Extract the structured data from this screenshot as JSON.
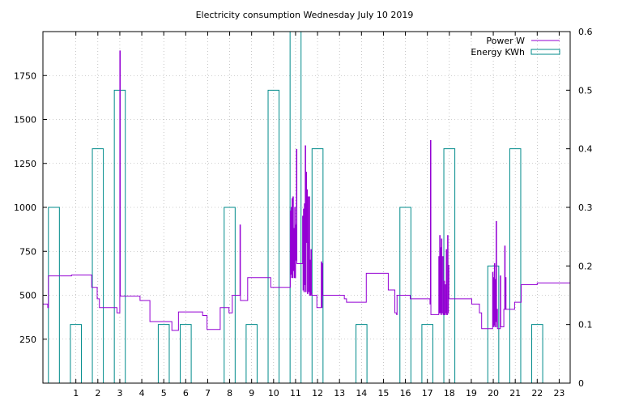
{
  "chart_data": {
    "type": "line",
    "title": "Electricity consumption Wednesday July 10 2019",
    "xlabel": "",
    "ylabel": "",
    "y2label": "",
    "grid": true,
    "legend_position": "top-right",
    "x_range": [
      -0.5,
      23.5
    ],
    "x_ticks": [
      1,
      2,
      3,
      4,
      5,
      6,
      7,
      8,
      9,
      10,
      11,
      12,
      13,
      14,
      15,
      16,
      17,
      18,
      19,
      20,
      21,
      22,
      23
    ],
    "y_range": [
      0,
      2000
    ],
    "y_ticks": [
      250,
      500,
      750,
      1000,
      1250,
      1500,
      1750
    ],
    "y2_range": [
      0,
      0.6
    ],
    "y2_ticks": [
      0,
      0.1,
      0.2,
      0.3,
      0.4,
      0.5,
      0.6
    ],
    "series": [
      {
        "name": "Power W",
        "axis": "left",
        "style": "steps",
        "color": "#9400d3",
        "points": [
          [
            -0.5,
            450
          ],
          [
            -0.3,
            450
          ],
          [
            -0.28,
            430
          ],
          [
            -0.25,
            610
          ],
          [
            0.2,
            610
          ],
          [
            0.8,
            615
          ],
          [
            1.7,
            615
          ],
          [
            1.72,
            545
          ],
          [
            1.95,
            545
          ],
          [
            1.97,
            480
          ],
          [
            2.05,
            480
          ],
          [
            2.07,
            430
          ],
          [
            2.85,
            430
          ],
          [
            2.87,
            400
          ],
          [
            2.98,
            400
          ],
          [
            3.0,
            1890
          ],
          [
            3.02,
            495
          ],
          [
            3.9,
            495
          ],
          [
            3.92,
            470
          ],
          [
            4.35,
            470
          ],
          [
            4.37,
            350
          ],
          [
            5.35,
            350
          ],
          [
            5.37,
            300
          ],
          [
            5.65,
            300
          ],
          [
            5.67,
            405
          ],
          [
            6.75,
            405
          ],
          [
            6.77,
            385
          ],
          [
            6.95,
            385
          ],
          [
            6.97,
            305
          ],
          [
            7.55,
            305
          ],
          [
            7.57,
            430
          ],
          [
            7.95,
            430
          ],
          [
            7.97,
            400
          ],
          [
            8.1,
            400
          ],
          [
            8.12,
            500
          ],
          [
            8.45,
            500
          ],
          [
            8.47,
            900
          ],
          [
            8.49,
            470
          ],
          [
            8.8,
            470
          ],
          [
            8.82,
            600
          ],
          [
            9.85,
            600
          ],
          [
            9.87,
            545
          ],
          [
            10.75,
            545
          ],
          [
            10.76,
            980
          ],
          [
            10.78,
            620
          ],
          [
            10.8,
            1000
          ],
          [
            10.82,
            600
          ],
          [
            10.84,
            1050
          ],
          [
            10.86,
            600
          ],
          [
            10.88,
            1060
          ],
          [
            10.9,
            640
          ],
          [
            10.92,
            880
          ],
          [
            10.94,
            600
          ],
          [
            10.96,
            1000
          ],
          [
            10.98,
            600
          ],
          [
            11.0,
            900
          ],
          [
            11.02,
            700
          ],
          [
            11.04,
            1330
          ],
          [
            11.06,
            680
          ],
          [
            11.08,
            680
          ],
          [
            11.3,
            680
          ],
          [
            11.32,
            950
          ],
          [
            11.34,
            530
          ],
          [
            11.36,
            990
          ],
          [
            11.38,
            520
          ],
          [
            11.4,
            1020
          ],
          [
            11.42,
            560
          ],
          [
            11.44,
            1350
          ],
          [
            11.46,
            520
          ],
          [
            11.48,
            1200
          ],
          [
            11.5,
            800
          ],
          [
            11.52,
            1100
          ],
          [
            11.54,
            510
          ],
          [
            11.56,
            800
          ],
          [
            11.58,
            1060
          ],
          [
            11.6,
            520
          ],
          [
            11.62,
            1060
          ],
          [
            11.64,
            500
          ],
          [
            11.66,
            700
          ],
          [
            11.68,
            500
          ],
          [
            11.7,
            760
          ],
          [
            11.72,
            510
          ],
          [
            11.74,
            500
          ],
          [
            11.95,
            500
          ],
          [
            11.97,
            430
          ],
          [
            12.15,
            430
          ],
          [
            12.17,
            690
          ],
          [
            12.19,
            430
          ],
          [
            12.21,
            680
          ],
          [
            12.23,
            500
          ],
          [
            13.2,
            500
          ],
          [
            13.22,
            480
          ],
          [
            13.3,
            480
          ],
          [
            13.32,
            460
          ],
          [
            14.2,
            460
          ],
          [
            14.22,
            625
          ],
          [
            15.2,
            625
          ],
          [
            15.22,
            530
          ],
          [
            15.5,
            530
          ],
          [
            15.52,
            400
          ],
          [
            15.58,
            400
          ],
          [
            15.6,
            390
          ],
          [
            15.62,
            500
          ],
          [
            16.2,
            500
          ],
          [
            16.22,
            480
          ],
          [
            17.1,
            480
          ],
          [
            17.12,
            450
          ],
          [
            17.14,
            1380
          ],
          [
            17.16,
            390
          ],
          [
            17.5,
            390
          ],
          [
            17.52,
            720
          ],
          [
            17.54,
            400
          ],
          [
            17.56,
            840
          ],
          [
            17.58,
            400
          ],
          [
            17.6,
            770
          ],
          [
            17.62,
            390
          ],
          [
            17.64,
            820
          ],
          [
            17.66,
            400
          ],
          [
            17.7,
            720
          ],
          [
            17.72,
            390
          ],
          [
            17.76,
            580
          ],
          [
            17.78,
            390
          ],
          [
            17.82,
            560
          ],
          [
            17.84,
            400
          ],
          [
            17.86,
            760
          ],
          [
            17.88,
            390
          ],
          [
            17.92,
            840
          ],
          [
            17.94,
            400
          ],
          [
            17.96,
            670
          ],
          [
            17.98,
            480
          ],
          [
            19.0,
            480
          ],
          [
            19.02,
            450
          ],
          [
            19.35,
            450
          ],
          [
            19.37,
            400
          ],
          [
            19.45,
            400
          ],
          [
            19.47,
            310
          ],
          [
            19.95,
            310
          ],
          [
            19.97,
            630
          ],
          [
            19.99,
            320
          ],
          [
            20.01,
            600
          ],
          [
            20.03,
            330
          ],
          [
            20.05,
            680
          ],
          [
            20.07,
            320
          ],
          [
            20.09,
            590
          ],
          [
            20.11,
            350
          ],
          [
            20.13,
            920
          ],
          [
            20.15,
            320
          ],
          [
            20.17,
            420
          ],
          [
            20.19,
            310
          ],
          [
            20.3,
            310
          ],
          [
            20.32,
            610
          ],
          [
            20.34,
            320
          ],
          [
            20.46,
            320
          ],
          [
            20.48,
            420
          ],
          [
            20.5,
            420
          ],
          [
            20.52,
            780
          ],
          [
            20.54,
            420
          ],
          [
            20.56,
            600
          ],
          [
            20.58,
            420
          ],
          [
            20.95,
            420
          ],
          [
            20.97,
            460
          ],
          [
            21.25,
            460
          ],
          [
            21.27,
            560
          ],
          [
            21.6,
            560
          ],
          [
            22.0,
            570
          ],
          [
            23.5,
            570
          ]
        ]
      },
      {
        "name": "Energy KWh",
        "axis": "right",
        "style": "boxes",
        "color": "#008b8b",
        "categories": [
          0,
          1,
          2,
          3,
          4,
          5,
          6,
          7,
          8,
          9,
          10,
          11,
          12,
          13,
          14,
          15,
          16,
          17,
          18,
          19,
          20,
          21,
          22,
          23
        ],
        "values": [
          0.3,
          0.1,
          0.4,
          0.5,
          0.0,
          0.1,
          0.1,
          0.0,
          0.3,
          0.1,
          0.5,
          0.6,
          0.4,
          0.0,
          0.1,
          0.0,
          0.3,
          0.1,
          0.4,
          0.0,
          0.2,
          0.4,
          0.1,
          0.0
        ]
      }
    ]
  }
}
